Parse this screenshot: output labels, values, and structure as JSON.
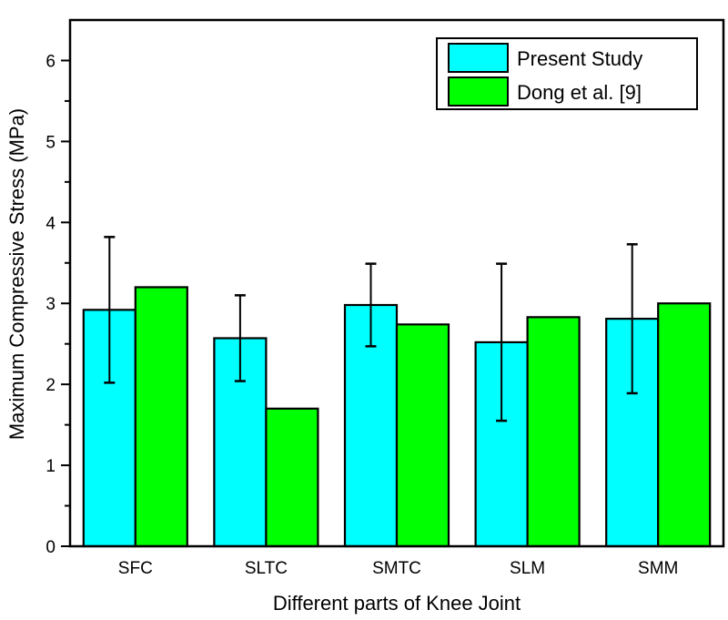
{
  "chart_data": {
    "type": "bar",
    "title": "",
    "xlabel": "Different parts of Knee Joint",
    "ylabel": "Maximum Compressive Stress (MPa)",
    "categories": [
      "SFC",
      "SLTC",
      "SMTC",
      "SLM",
      "SMM"
    ],
    "ylim": [
      0,
      6.5
    ],
    "yticks": [
      0,
      1,
      2,
      3,
      4,
      5,
      6
    ],
    "ytick_labels": [
      "0",
      "1",
      "2",
      "3",
      "4",
      "5",
      "6"
    ],
    "minor_yticks": [
      0.5,
      1.5,
      2.5,
      3.5,
      4.5,
      5.5
    ],
    "grid": false,
    "legend_position": "top-right",
    "series": [
      {
        "name": "Present Study",
        "color": "#00ffff",
        "values": [
          2.92,
          2.57,
          2.98,
          2.52,
          2.81
        ],
        "error_low": [
          2.02,
          2.04,
          2.47,
          1.55,
          1.89
        ],
        "error_high": [
          3.82,
          3.1,
          3.49,
          3.49,
          3.73
        ]
      },
      {
        "name": "Dong et al. [9]",
        "color": "#00ff00",
        "values": [
          3.2,
          1.7,
          2.74,
          2.83,
          3.0
        ]
      }
    ]
  }
}
